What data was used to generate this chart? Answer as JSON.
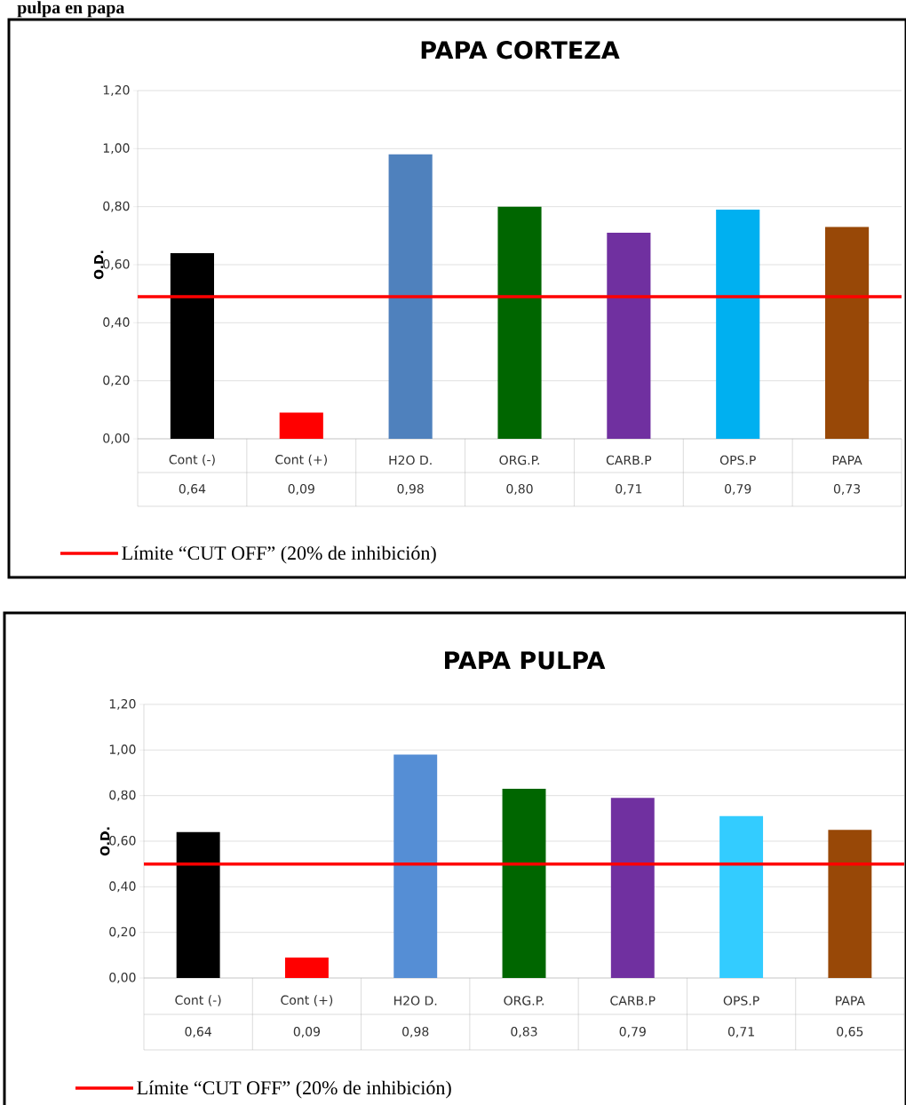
{
  "chart_data": [
    {
      "type": "bar",
      "title": "PAPA CORTEZA",
      "ylabel": "O.D.",
      "annotations": [
        "pulpa en papa"
      ],
      "categories": [
        "Cont (-)",
        "Cont (+)",
        "H2O D.",
        "ORG.P.",
        "CARB.P",
        "OPS.P",
        "PAPA"
      ],
      "values": [
        0.64,
        0.09,
        0.98,
        0.8,
        0.71,
        0.79,
        0.73
      ],
      "value_labels": [
        "0,64",
        "0,09",
        "0,98",
        "0,80",
        "0,71",
        "0,79",
        "0,73"
      ],
      "colors": [
        "#000000",
        "#ff0000",
        "#4f81bd",
        "#006600",
        "#7030a0",
        "#00b0f0",
        "#984807"
      ],
      "ylim": [
        0,
        1.2
      ],
      "yticks": [
        {
          "value": 0,
          "label": "0,00"
        },
        {
          "value": 0.2,
          "label": "0,20"
        },
        {
          "value": 0.4,
          "label": "0,40"
        },
        {
          "value": 0.6,
          "label": "0,60"
        },
        {
          "value": 0.8,
          "label": "0,80"
        },
        {
          "value": 1.0,
          "label": "1,00"
        },
        {
          "value": 1.2,
          "label": "1,20"
        }
      ],
      "grid": "y",
      "legend": "bottom",
      "ref_lines": [
        {
          "axis": "y",
          "value": 0.49,
          "label": "Límite “CUT OFF” (20% de inhibición)",
          "color": "#ff0000"
        }
      ]
    },
    {
      "type": "bar",
      "title": "PAPA PULPA",
      "ylabel": "O.D.",
      "categories": [
        "Cont (-)",
        "Cont (+)",
        "H2O D.",
        "ORG.P.",
        "CARB.P",
        "OPS.P",
        "PAPA"
      ],
      "values": [
        0.64,
        0.09,
        0.98,
        0.83,
        0.79,
        0.71,
        0.65
      ],
      "value_labels": [
        "0,64",
        "0,09",
        "0,98",
        "0,83",
        "0,79",
        "0,71",
        "0,65"
      ],
      "colors": [
        "#000000",
        "#ff0000",
        "#558ed5",
        "#006600",
        "#7030a0",
        "#33ccff",
        "#984807"
      ],
      "ylim": [
        0,
        1.2
      ],
      "yticks": [
        {
          "value": 0,
          "label": "0,00"
        },
        {
          "value": 0.2,
          "label": "0,20"
        },
        {
          "value": 0.4,
          "label": "0,40"
        },
        {
          "value": 0.6,
          "label": "0,60"
        },
        {
          "value": 0.8,
          "label": "0,80"
        },
        {
          "value": 1.0,
          "label": "1,00"
        },
        {
          "value": 1.2,
          "label": "1,20"
        }
      ],
      "grid": "y",
      "legend": "bottom",
      "ref_lines": [
        {
          "axis": "y",
          "value": 0.5,
          "label": "Límite “CUT OFF” (20% de inhibición)",
          "color": "#ff0000"
        }
      ]
    }
  ]
}
